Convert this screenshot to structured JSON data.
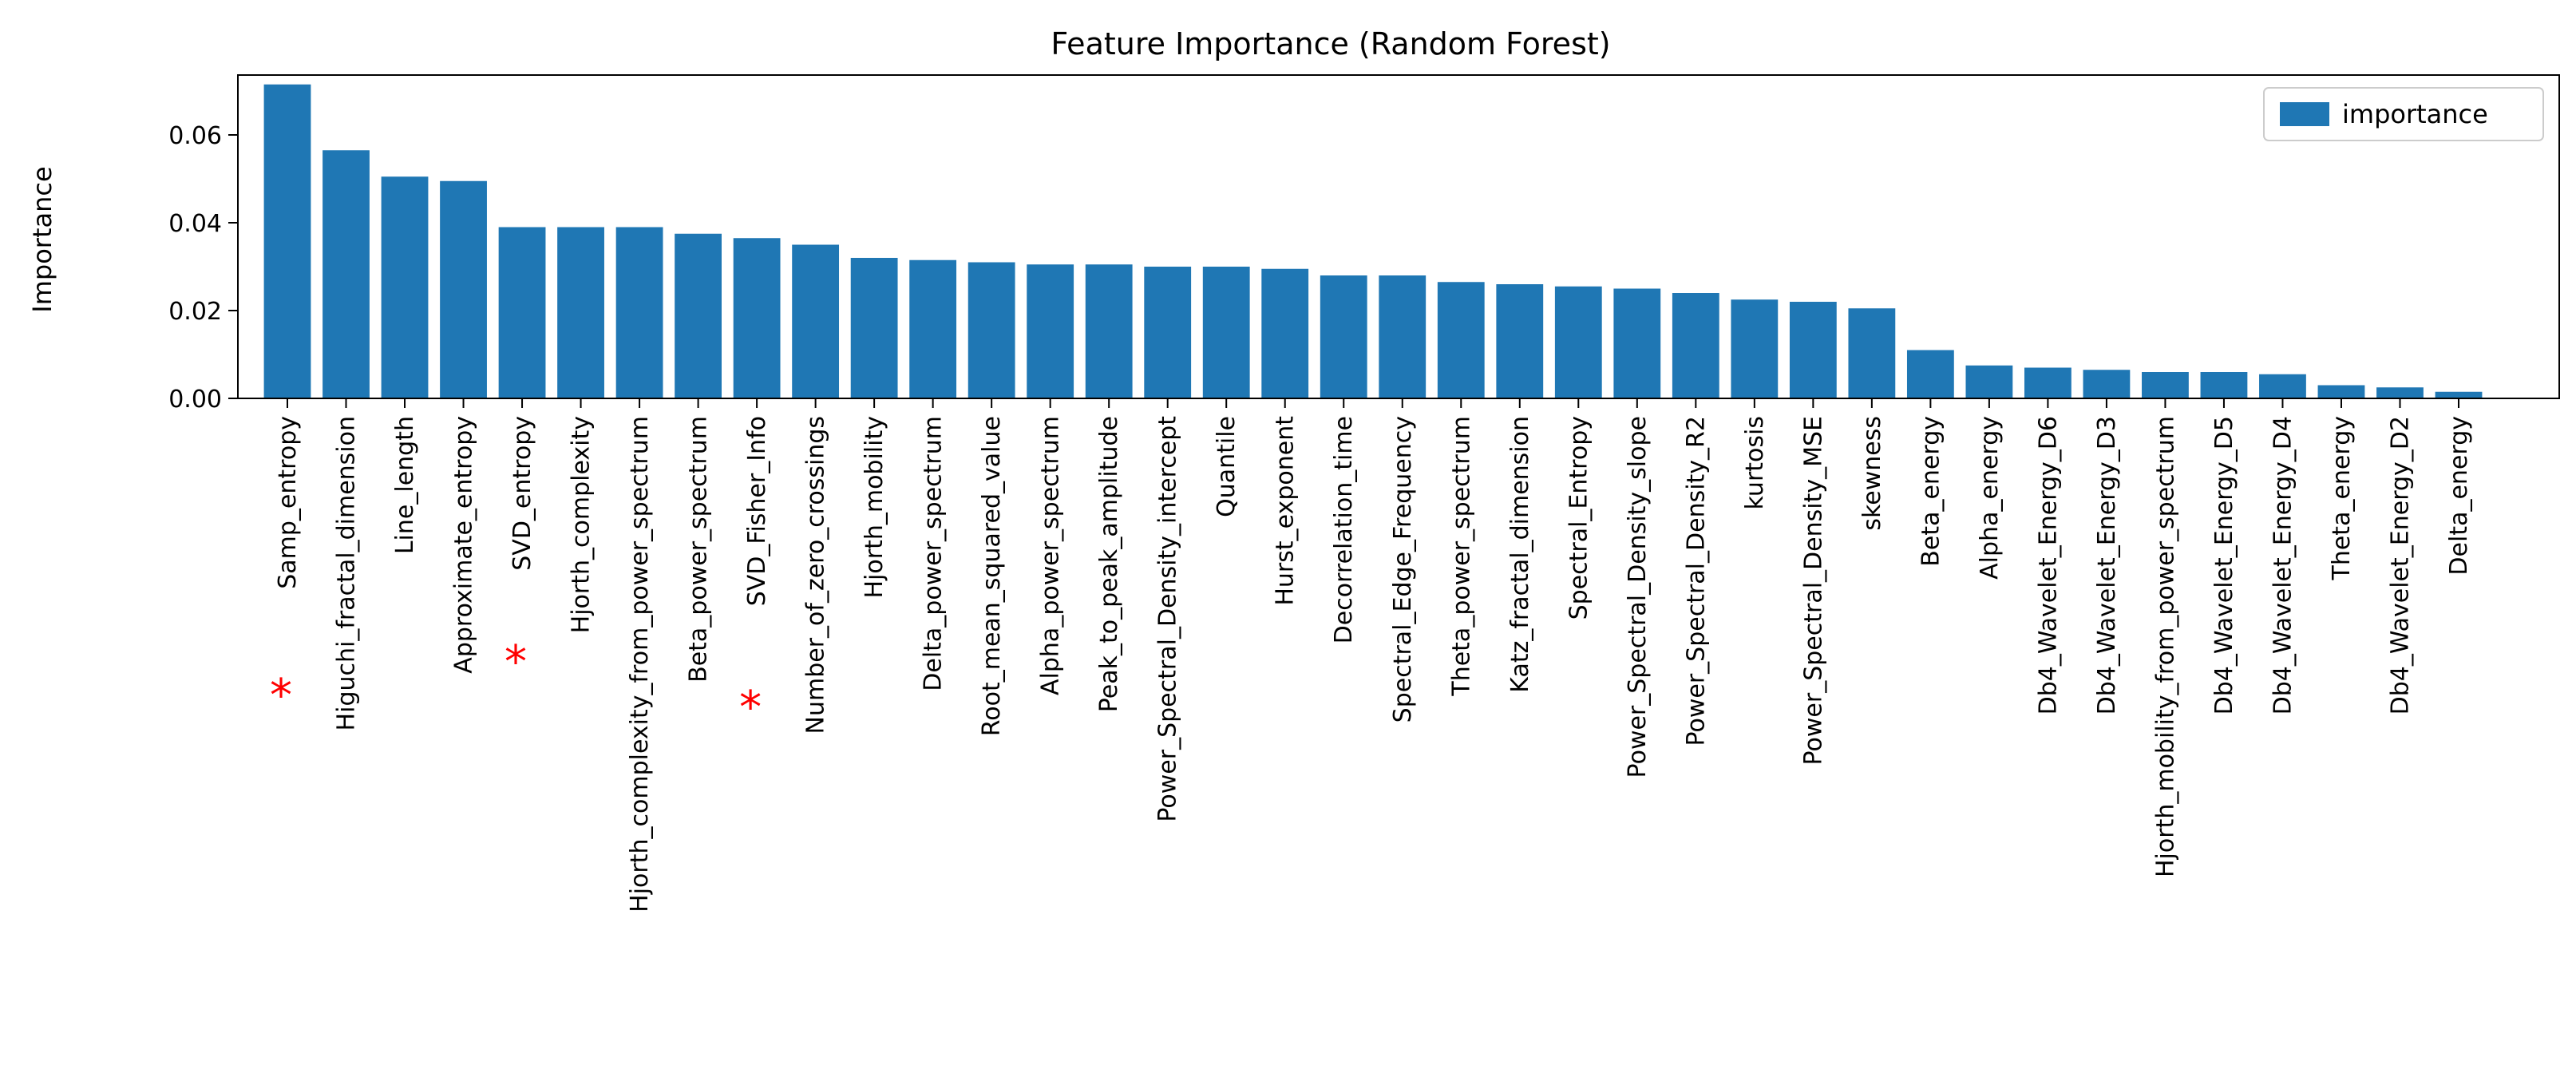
{
  "chart_data": {
    "type": "bar",
    "title": "Feature Importance (Random Forest)",
    "xlabel": "",
    "ylabel": "Importance",
    "ylim": [
      0,
      0.075
    ],
    "yticks": [
      "0.00",
      "0.02",
      "0.04",
      "0.06"
    ],
    "ytick_values": [
      0,
      0.02,
      0.04,
      0.06
    ],
    "grid": false,
    "legend": {
      "placement": "top-right",
      "entries": [
        "importance"
      ]
    },
    "bar_color": "#1f77b4",
    "marker_color": "#ff0000",
    "marker_symbol": "*",
    "marked_categories": [
      "Samp_entropy",
      "SVD_entropy",
      "SVD_Fisher_Info"
    ],
    "series": [
      {
        "name": "importance",
        "values": [
          0.0715,
          0.0565,
          0.0505,
          0.0495,
          0.039,
          0.039,
          0.039,
          0.0375,
          0.0365,
          0.035,
          0.032,
          0.0315,
          0.031,
          0.0305,
          0.0305,
          0.03,
          0.03,
          0.0295,
          0.028,
          0.028,
          0.0265,
          0.026,
          0.0255,
          0.025,
          0.024,
          0.0225,
          0.022,
          0.0205,
          0.011,
          0.0075,
          0.007,
          0.0065,
          0.006,
          0.006,
          0.0055,
          0.003,
          0.0025,
          0.0015
        ]
      }
    ],
    "categories": [
      "Samp_entropy",
      "Higuchi_fractal_dimension",
      "Line_length",
      "Approximate_entropy",
      "SVD_entropy",
      "Hjorth_complexity",
      "Hjorth_complexity_from_power_spectrum",
      "Beta_power_spectrum",
      "SVD_Fisher_Info",
      "Number_of_zero_crossings",
      "Hjorth_mobility",
      "Delta_power_spectrum",
      "Root_mean_squared_value",
      "Alpha_power_spectrum",
      "Peak_to_peak_amplitude",
      "Power_Spectral_Density_intercept",
      "Quantile",
      "Hurst_exponent",
      "Decorrelation_time",
      "Spectral_Edge_Frequency",
      "Theta_power_spectrum",
      "Katz_fractal_dimension",
      "Spectral_Entropy",
      "Power_Spectral_Density_slope",
      "Power_Spectral_Density_R2",
      "kurtosis",
      "Power_Spectral_Density_MSE",
      "skewness",
      "Beta_energy",
      "Alpha_energy",
      "Db4_Wavelet_Energy_D6",
      "Db4_Wavelet_Energy_D3",
      "Hjorth_mobility_from_power_spectrum",
      "Db4_Wavelet_Energy_D5",
      "Db4_Wavelet_Energy_D4",
      "Theta_energy",
      "Db4_Wavelet_Energy_D2",
      "Delta_energy"
    ]
  }
}
